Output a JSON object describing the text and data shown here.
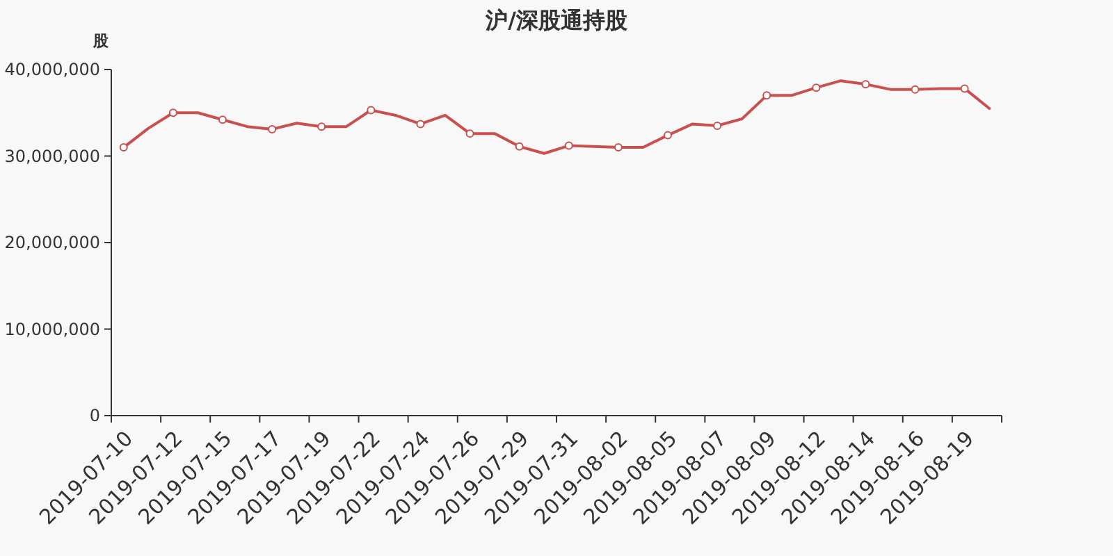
{
  "chart_data": {
    "type": "line",
    "title": "沪/深股通持股",
    "ylabel": "股",
    "categories": [
      "2019-07-10",
      null,
      "2019-07-12",
      null,
      "2019-07-15",
      null,
      "2019-07-17",
      null,
      "2019-07-19",
      null,
      "2019-07-22",
      null,
      "2019-07-24",
      null,
      "2019-07-26",
      null,
      "2019-07-29",
      null,
      "2019-07-31",
      null,
      "2019-08-02",
      null,
      "2019-08-05",
      null,
      "2019-08-07",
      null,
      "2019-08-09",
      null,
      "2019-08-12",
      null,
      "2019-08-14",
      null,
      "2019-08-16",
      null,
      "2019-08-19",
      null
    ],
    "series": [
      {
        "color": "#c8504e",
        "values": [
          31000000,
          33200000,
          35000000,
          35000000,
          34200000,
          33400000,
          33100000,
          33800000,
          33400000,
          33400000,
          35300000,
          34700000,
          33700000,
          34700000,
          32600000,
          32600000,
          31100000,
          30300000,
          31200000,
          31100000,
          31000000,
          31000000,
          32400000,
          33700000,
          33500000,
          34300000,
          37000000,
          37000000,
          37900000,
          38700000,
          38300000,
          37700000,
          37700000,
          37800000,
          37800000,
          35500000
        ]
      }
    ],
    "ylim": [
      0,
      40000000
    ],
    "yticks": [
      {
        "value": 0,
        "label": "0"
      },
      {
        "value": 10000000,
        "label": "10,000,000"
      },
      {
        "value": 20000000,
        "label": "20,000,000"
      },
      {
        "value": 30000000,
        "label": "30,000,000"
      },
      {
        "value": 40000000,
        "label": "40,000,000"
      }
    ],
    "grid": false,
    "marker": "circle",
    "line_style": "solid"
  }
}
